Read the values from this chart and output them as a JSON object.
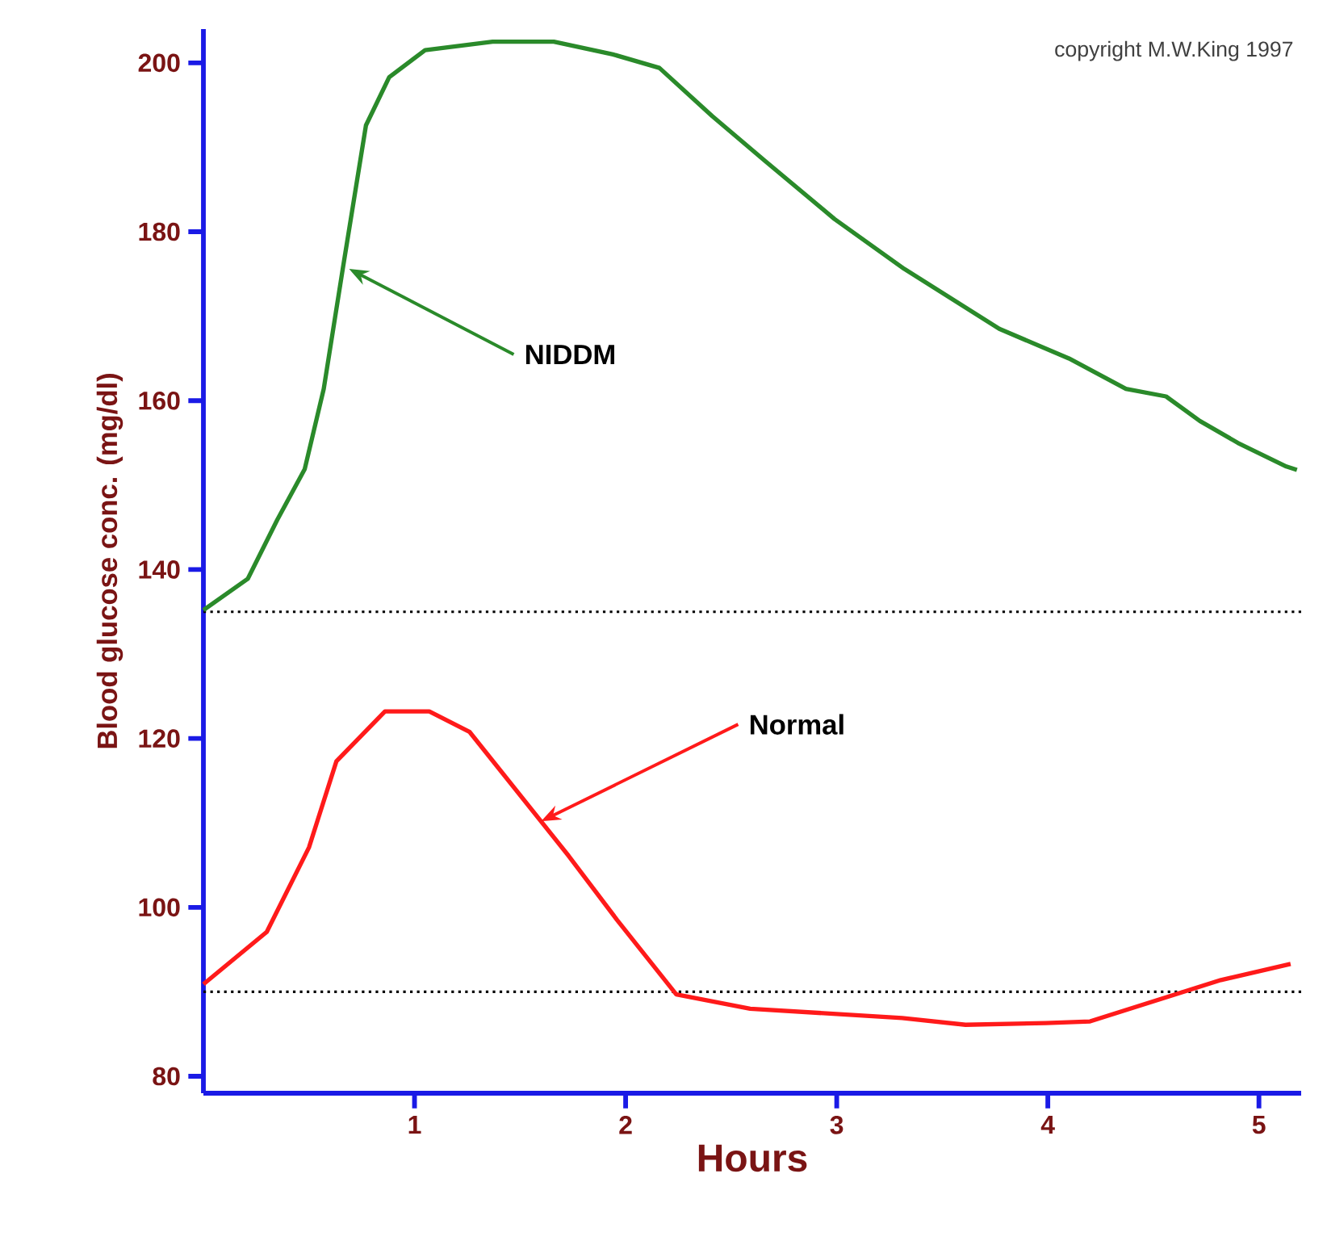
{
  "chart_data": {
    "type": "line",
    "xlabel": "Hours",
    "ylabel": "Blood glucose conc. (mg/dl)",
    "xlim": [
      0,
      5.2
    ],
    "ylim": [
      78,
      204
    ],
    "xticks": [
      1,
      2,
      3,
      4,
      5
    ],
    "yticks": [
      80,
      100,
      120,
      140,
      160,
      180,
      200
    ],
    "series": [
      {
        "color": "#2a8a2a",
        "x": [
          0,
          0.21,
          0.35,
          0.48,
          0.57,
          0.66,
          0.77,
          0.88,
          1.05,
          1.37,
          1.66,
          1.94,
          2.16,
          2.41,
          2.66,
          2.99,
          3.32,
          3.77,
          4.1,
          4.37,
          4.56,
          4.72,
          4.9,
          5.13,
          5.18
        ],
        "values": [
          135.2,
          138.9,
          145.9,
          151.9,
          161.4,
          175.6,
          192.6,
          198.3,
          201.5,
          202.5,
          202.5,
          201,
          199.4,
          193.7,
          188.4,
          181.5,
          175.6,
          168.5,
          165,
          161.4,
          160.5,
          157.6,
          155,
          152.2,
          151.8
        ]
      },
      {
        "color": "#ff1a1a",
        "x": [
          0,
          0.3,
          0.5,
          0.63,
          0.86,
          1.07,
          1.26,
          1.73,
          1.96,
          2.24,
          2.59,
          3.31,
          3.61,
          3.99,
          4.2,
          4.82,
          5.15
        ],
        "values": [
          90.9,
          97.1,
          107.1,
          117.3,
          123.2,
          123.2,
          120.8,
          106.1,
          98.5,
          89.7,
          88,
          86.9,
          86.1,
          86.3,
          86.5,
          91.4,
          93.3
        ]
      }
    ],
    "ref_lines": [
      {
        "axis": "y",
        "value": 135,
        "color": "#000000",
        "line_style": "dotted"
      },
      {
        "axis": "y",
        "value": 90,
        "color": "#000000",
        "line_style": "dotted"
      }
    ],
    "annotations": [
      "copyright M.W.King 1997",
      {
        "text": "NIDDM",
        "x": 0.69,
        "y": 175.6
      },
      {
        "text": "Normal",
        "x": 1.6,
        "y": 110.2
      }
    ]
  }
}
